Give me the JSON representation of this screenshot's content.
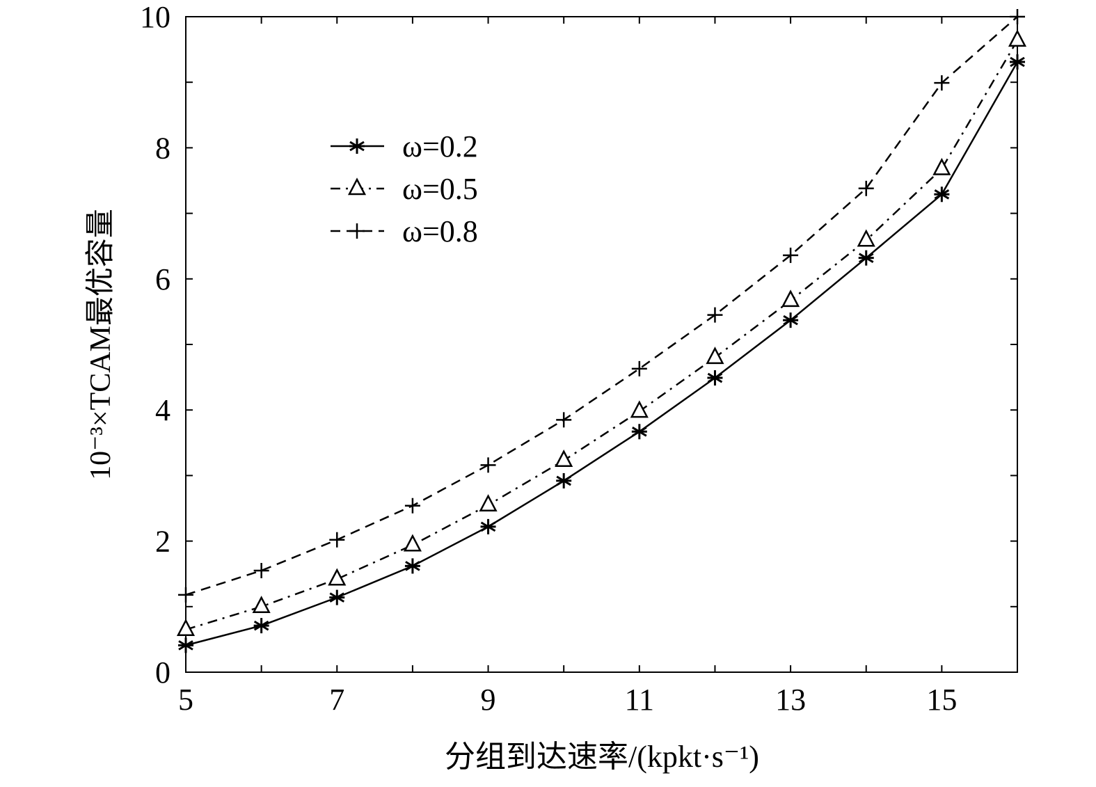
{
  "chart_data": {
    "type": "line",
    "title": "",
    "xlabel": "分组到达速率/(kpkt·s⁻¹)",
    "ylabel": "10⁻³×TCAM最优容量",
    "xlim": [
      5,
      16
    ],
    "ylim": [
      0,
      10
    ],
    "xticks": [
      5,
      7,
      9,
      11,
      13,
      15
    ],
    "yticks": [
      0,
      2,
      4,
      6,
      8,
      10
    ],
    "grid": false,
    "legend_position": "upper-left",
    "x": [
      5,
      6,
      7,
      8,
      9,
      10,
      11,
      12,
      13,
      14,
      15,
      16
    ],
    "series": [
      {
        "name": "ω=0.2",
        "marker": "star",
        "dash": "solid",
        "values": [
          0.41,
          0.71,
          1.14,
          1.62,
          2.22,
          2.92,
          3.67,
          4.49,
          5.37,
          6.32,
          7.29,
          9.31
        ]
      },
      {
        "name": "ω=0.5",
        "marker": "triangle",
        "dash": "dashdot",
        "values": [
          0.65,
          1.0,
          1.42,
          1.94,
          2.55,
          3.23,
          3.98,
          4.8,
          5.67,
          6.59,
          7.68,
          9.64
        ]
      },
      {
        "name": "ω=0.8",
        "marker": "plus",
        "dash": "dashed",
        "values": [
          1.18,
          1.55,
          2.02,
          2.54,
          3.16,
          3.85,
          4.63,
          5.45,
          6.36,
          7.38,
          8.99,
          10.0
        ]
      }
    ]
  }
}
